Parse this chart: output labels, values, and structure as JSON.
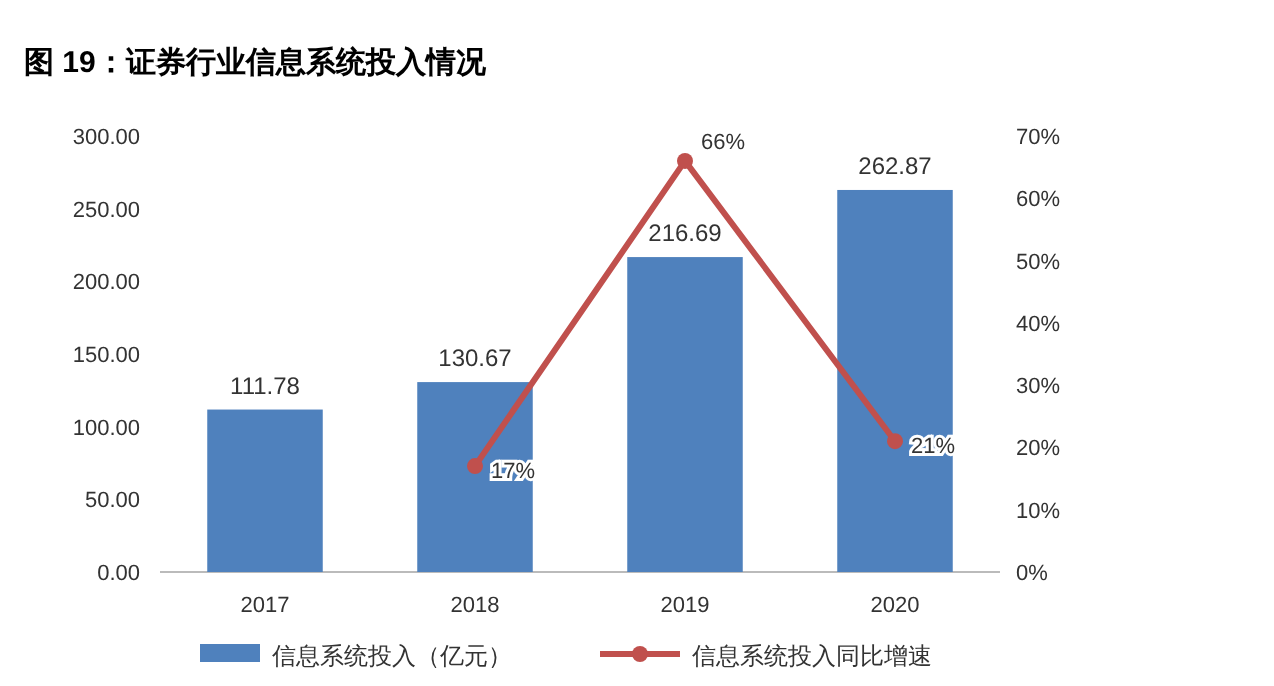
{
  "chart_data": {
    "type": "bar",
    "title": "图 19：证券行业信息系统投入情况",
    "categories": [
      "2017",
      "2018",
      "2019",
      "2020"
    ],
    "series": [
      {
        "name": "信息系统投入（亿元）",
        "type": "bar",
        "color": "#4f81bd",
        "values": [
          111.78,
          130.67,
          216.69,
          262.87
        ],
        "value_labels": [
          "111.78",
          "130.67",
          "216.69",
          "262.87"
        ]
      },
      {
        "name": "信息系统投入同比增速",
        "type": "line",
        "axis": "y2",
        "color": "#c0504d",
        "marker": "circle",
        "values": [
          null,
          17,
          66,
          21
        ],
        "value_labels": [
          null,
          "17%",
          "66%",
          "21%"
        ]
      }
    ],
    "ylim": [
      0,
      300
    ],
    "yticks": [
      {
        "value": 0,
        "label": "0.00"
      },
      {
        "value": 50,
        "label": "50.00"
      },
      {
        "value": 100,
        "label": "100.00"
      },
      {
        "value": 150,
        "label": "150.00"
      },
      {
        "value": 200,
        "label": "200.00"
      },
      {
        "value": 250,
        "label": "250.00"
      },
      {
        "value": 300,
        "label": "300.00"
      }
    ],
    "y2lim": [
      0,
      70
    ],
    "y2ticks": [
      {
        "value": 0,
        "label": "0%"
      },
      {
        "value": 10,
        "label": "10%"
      },
      {
        "value": 20,
        "label": "20%"
      },
      {
        "value": 30,
        "label": "30%"
      },
      {
        "value": 40,
        "label": "40%"
      },
      {
        "value": 50,
        "label": "50%"
      },
      {
        "value": 60,
        "label": "60%"
      },
      {
        "value": 70,
        "label": "70%"
      }
    ],
    "legend": "bottom",
    "grid": false
  }
}
